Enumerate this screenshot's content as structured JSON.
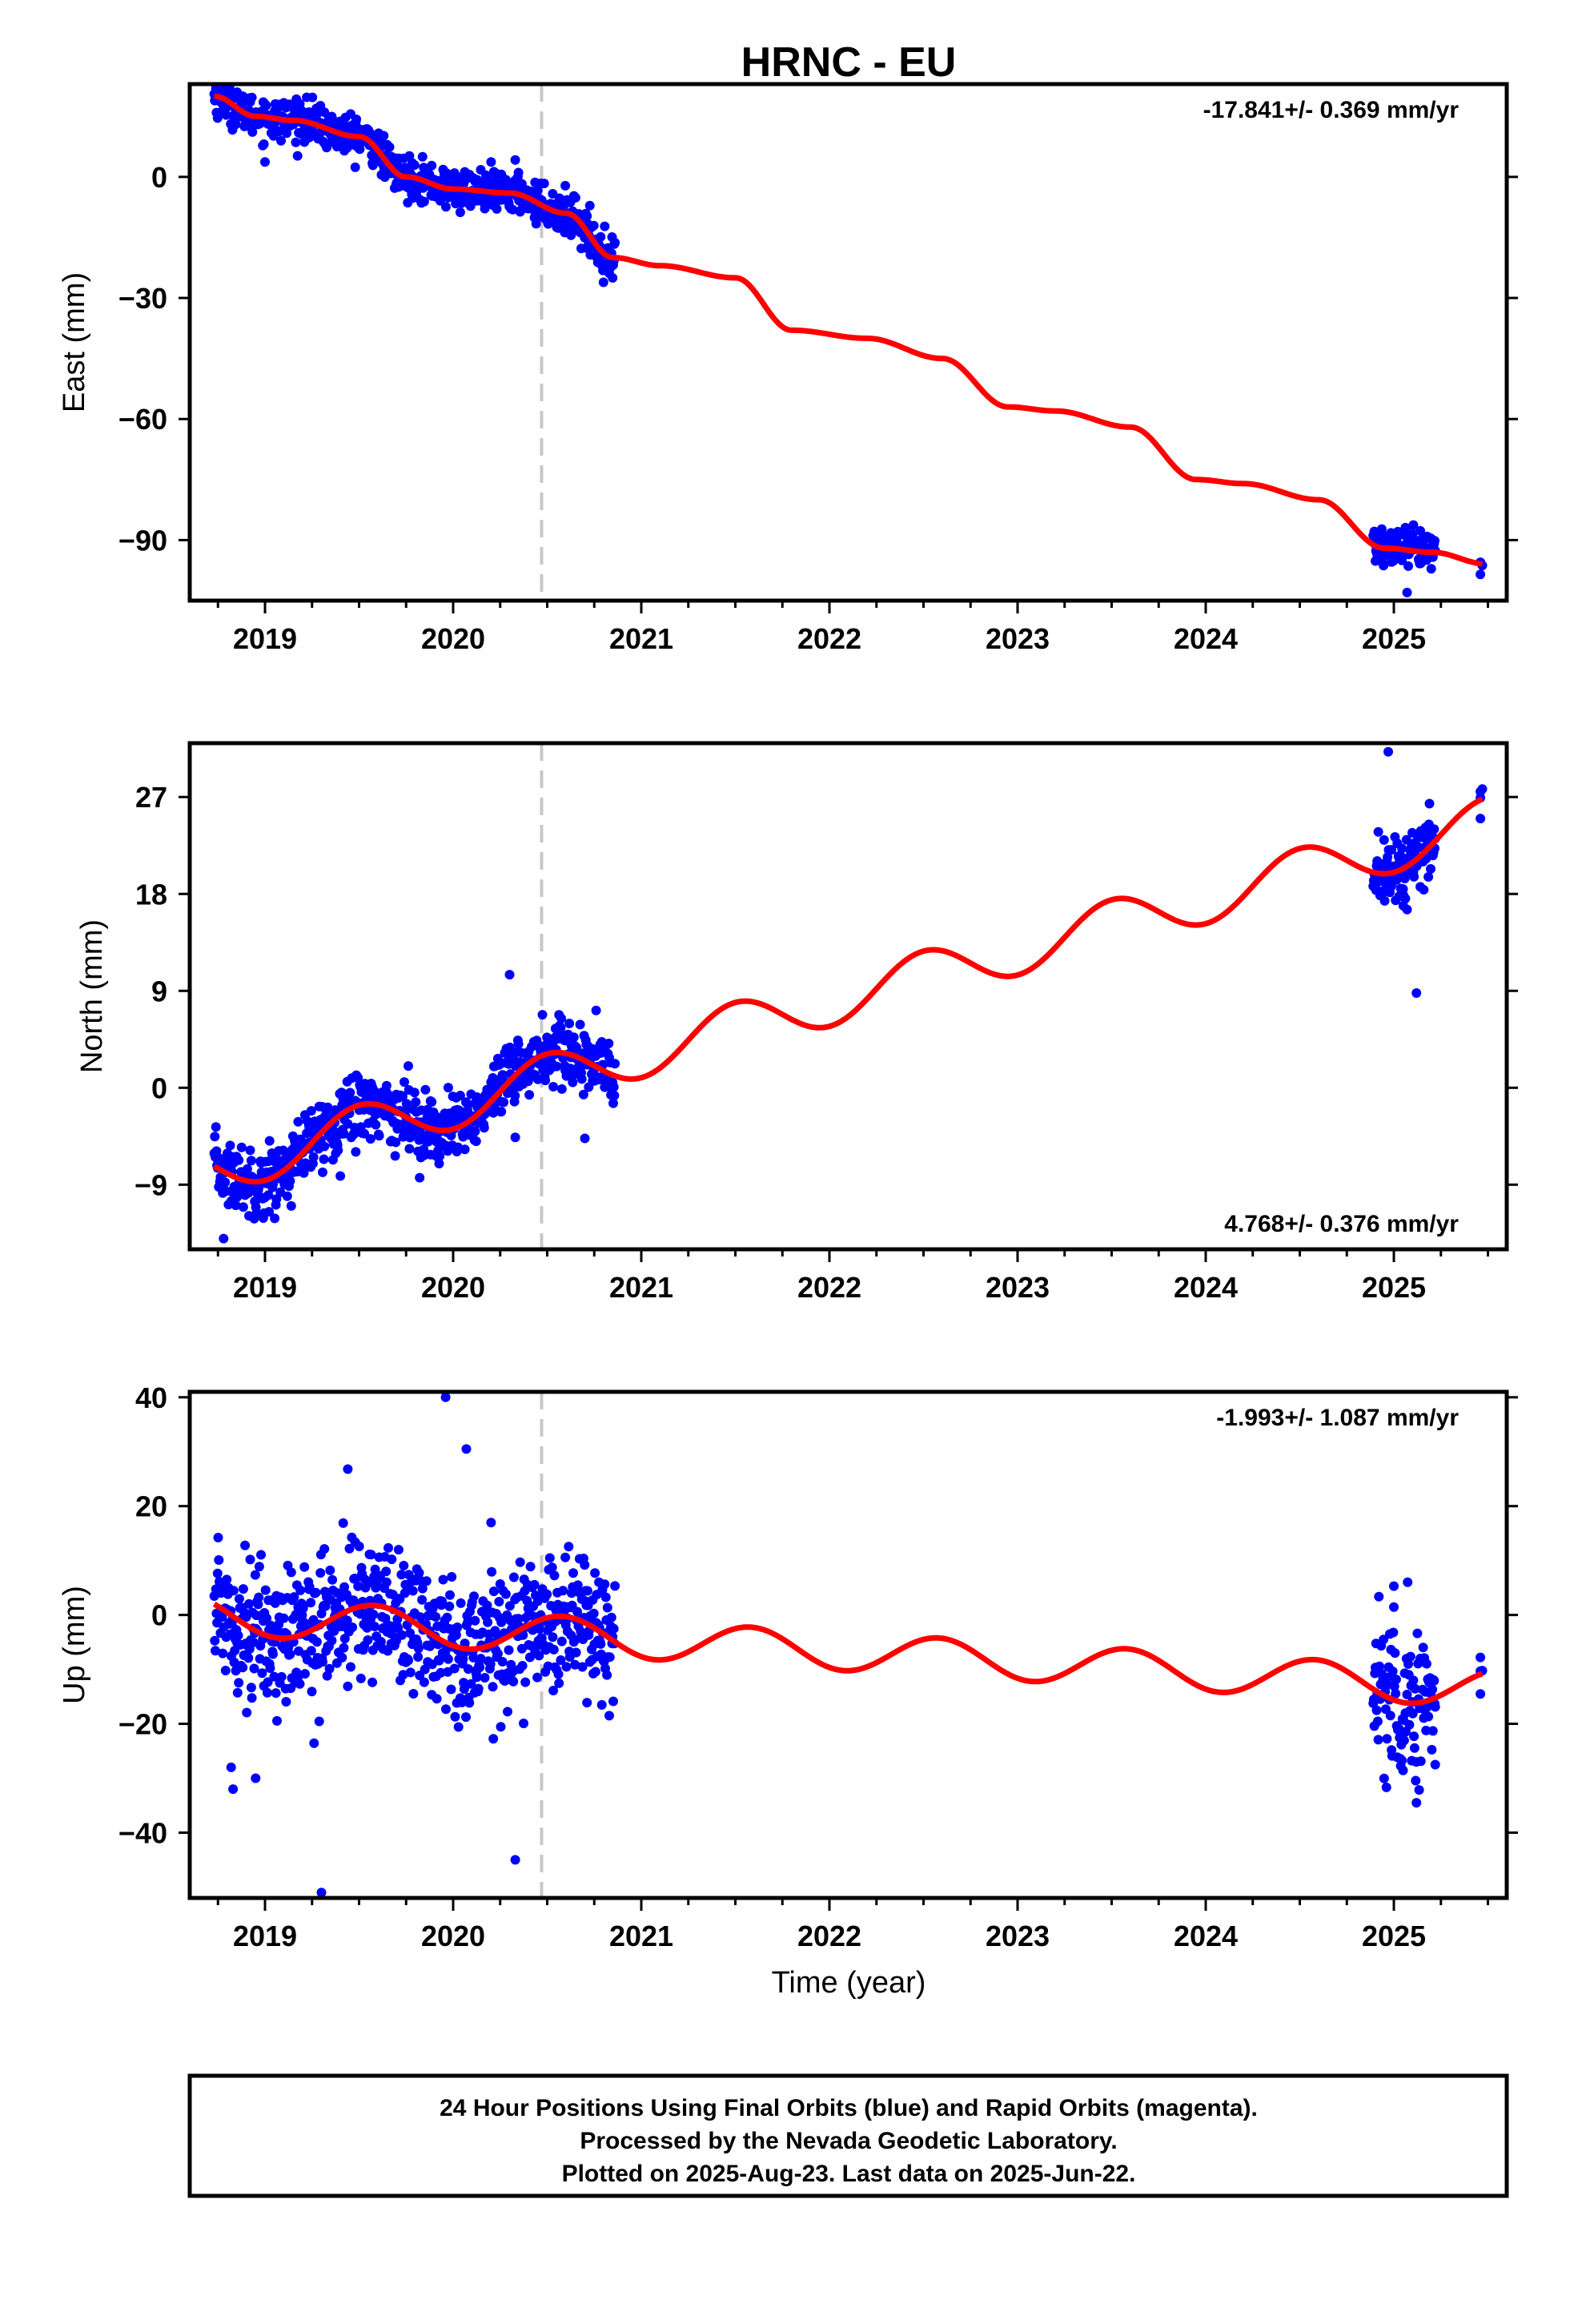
{
  "title": "HRNC - EU",
  "colors": {
    "points": "#0000ff",
    "fit": "#ff0000",
    "offset_line": "#c8c8c8",
    "frame": "#000000"
  },
  "xlabel": "Time (year)",
  "chart_data": [
    {
      "type": "scatter",
      "panel": "east",
      "ylabel": "East (mm)",
      "rate": "-17.841+/- 0.369 mm/yr",
      "rate_position": "top-right",
      "xlim": [
        2018.6,
        2025.6
      ],
      "ylim": [
        -105,
        23
      ],
      "y_ticks": [
        {
          "v": 0,
          "label": "0"
        },
        {
          "v": -30,
          "label": "−30"
        },
        {
          "v": -60,
          "label": "−60"
        },
        {
          "v": -90,
          "label": "−90"
        }
      ],
      "x_ticks": [
        {
          "v": 2019.0,
          "label": "2019"
        },
        {
          "v": 2020.0,
          "label": "2020"
        },
        {
          "v": 2021.0,
          "label": "2021"
        },
        {
          "v": 2022.0,
          "label": "2022"
        },
        {
          "v": 2023.0,
          "label": "2023"
        },
        {
          "v": 2024.0,
          "label": "2024"
        },
        {
          "v": 2025.0,
          "label": "2025"
        }
      ],
      "offset_epoch": 2020.47,
      "fit": {
        "t0": 2018.73,
        "y0": 20,
        "rate": -17.841,
        "season": [
          [
            2018.73,
            20
          ],
          [
            2018.95,
            15
          ],
          [
            2019.15,
            14
          ],
          [
            2019.5,
            10
          ],
          [
            2019.75,
            0
          ],
          [
            2020.0,
            -3
          ],
          [
            2020.3,
            -4
          ],
          [
            2020.6,
            -9
          ],
          [
            2020.85,
            -20
          ],
          [
            2021.1,
            -22
          ],
          [
            2021.5,
            -25
          ],
          [
            2021.8,
            -38
          ],
          [
            2022.2,
            -40
          ],
          [
            2022.6,
            -45
          ],
          [
            2022.95,
            -57
          ],
          [
            2023.2,
            -58
          ],
          [
            2023.6,
            -62
          ],
          [
            2023.95,
            -75
          ],
          [
            2024.2,
            -76
          ],
          [
            2024.6,
            -80
          ],
          [
            2024.95,
            -92
          ],
          [
            2025.2,
            -93
          ],
          [
            2025.5,
            -96
          ]
        ]
      },
      "data_segments": [
        {
          "start": 2018.73,
          "end": 2020.86,
          "noise": 2.5,
          "outliers": [
            [
              2019.0,
              3.7
            ],
            [
              2020.33,
              4.2
            ],
            [
              2020.55,
              -10.5
            ]
          ]
        },
        {
          "start": 2024.89,
          "end": 2025.22,
          "noise": 2.5,
          "outliers": [
            [
              2025.07,
              -103
            ],
            [
              2025.1,
              -88.5
            ]
          ]
        },
        {
          "start": 2025.46,
          "end": 2025.47,
          "noise": 1.0,
          "outliers": [
            [
              2025.46,
              -98.5
            ]
          ]
        }
      ]
    },
    {
      "type": "scatter",
      "panel": "north",
      "ylabel": "North (mm)",
      "rate": "4.768+/- 0.376 mm/yr",
      "rate_position": "bottom-right",
      "xlim": [
        2018.6,
        2025.6
      ],
      "ylim": [
        -15,
        32
      ],
      "y_ticks": [
        {
          "v": 27,
          "label": "27"
        },
        {
          "v": 18,
          "label": "18"
        },
        {
          "v": 9,
          "label": "9"
        },
        {
          "v": 0,
          "label": "0"
        },
        {
          "v": -9,
          "label": "−9"
        }
      ],
      "x_ticks": [
        {
          "v": 2019.0,
          "label": "2019"
        },
        {
          "v": 2020.0,
          "label": "2020"
        },
        {
          "v": 2021.0,
          "label": "2021"
        },
        {
          "v": 2022.0,
          "label": "2022"
        },
        {
          "v": 2023.0,
          "label": "2023"
        },
        {
          "v": 2024.0,
          "label": "2024"
        },
        {
          "v": 2025.0,
          "label": "2025"
        }
      ],
      "offset_epoch": 2020.47,
      "fit_curve": {
        "t0": 2018.73,
        "y0": -7.3,
        "slope": 4.768,
        "amp": 2.3,
        "phase_peak": 2019.5
      },
      "data_segments": [
        {
          "start": 2018.73,
          "end": 2020.86,
          "noise": 1.6,
          "outliers": [
            [
              2018.78,
              -14
            ],
            [
              2020.33,
              -4.6
            ],
            [
              2020.7,
              -4.7
            ],
            [
              2020.3,
              10.5
            ],
            [
              2019.88,
              -6.2
            ]
          ]
        },
        {
          "start": 2024.89,
          "end": 2025.22,
          "noise": 1.6,
          "outliers": [
            [
              2024.97,
              31.2
            ],
            [
              2025.12,
              8.8
            ],
            [
              2025.05,
              16.9
            ]
          ]
        },
        {
          "start": 2025.46,
          "end": 2025.47,
          "noise": 1.0,
          "outliers": [
            [
              2025.46,
              25
            ],
            [
              2025.46,
              27.5
            ]
          ]
        }
      ]
    },
    {
      "type": "scatter",
      "panel": "up",
      "ylabel": "Up (mm)",
      "rate": "-1.993+/- 1.087 mm/yr",
      "rate_position": "top-right",
      "xlim": [
        2018.6,
        2025.6
      ],
      "ylim": [
        -52,
        41
      ],
      "y_ticks": [
        {
          "v": 40,
          "label": "40"
        },
        {
          "v": 20,
          "label": "20"
        },
        {
          "v": 0,
          "label": "0"
        },
        {
          "v": -20,
          "label": "−20"
        },
        {
          "v": -40,
          "label": "−40"
        }
      ],
      "x_ticks": [
        {
          "v": 2019.0,
          "label": "2019"
        },
        {
          "v": 2020.0,
          "label": "2020"
        },
        {
          "v": 2021.0,
          "label": "2021"
        },
        {
          "v": 2022.0,
          "label": "2022"
        },
        {
          "v": 2023.0,
          "label": "2023"
        },
        {
          "v": 2024.0,
          "label": "2024"
        },
        {
          "v": 2025.0,
          "label": "2025"
        }
      ],
      "offset_epoch": 2020.47,
      "fit_curve": {
        "t0": 2018.73,
        "y0": 2.0,
        "slope": -1.993,
        "amp": 3.5,
        "phase_peak": 2019.58
      },
      "data_segments": [
        {
          "start": 2018.73,
          "end": 2020.86,
          "noise": 6.5,
          "outliers": [
            [
              2019.96,
              40
            ],
            [
              2020.07,
              30.5
            ],
            [
              2019.44,
              26.8
            ],
            [
              2019.3,
              -51
            ],
            [
              2018.83,
              -32
            ],
            [
              2018.95,
              -30
            ],
            [
              2020.33,
              -45
            ],
            [
              2018.82,
              -28
            ]
          ]
        },
        {
          "start": 2024.89,
          "end": 2025.22,
          "noise": 7.0,
          "outliers": [
            [
              2025.12,
              -34.5
            ],
            [
              2025.22,
              -27.5
            ],
            [
              2025.0,
              5.3
            ]
          ]
        },
        {
          "start": 2025.46,
          "end": 2025.47,
          "noise": 1.0,
          "outliers": [
            [
              2025.46,
              -7.8
            ],
            [
              2025.46,
              -14.5
            ]
          ]
        }
      ]
    }
  ],
  "footer": {
    "line1": "24 Hour Positions Using Final Orbits (blue) and Rapid Orbits (magenta).",
    "line2": "Processed by the Nevada Geodetic Laboratory.",
    "line3": "Plotted on 2025-Aug-23. Last data on 2025-Jun-22."
  }
}
